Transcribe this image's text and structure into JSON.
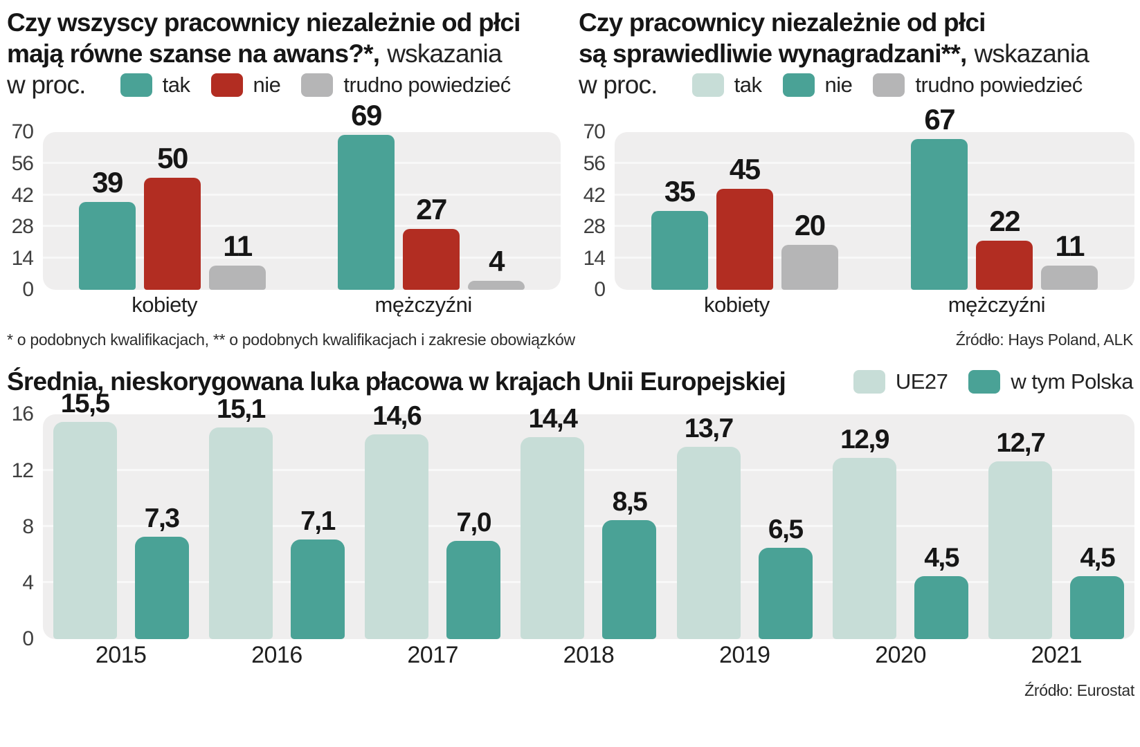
{
  "colors": {
    "teal": "#4aa296",
    "light_teal": "#c7ddd7",
    "red": "#b22d22",
    "gray": "#b5b5b6",
    "plot_bg": "#efeeee",
    "grid": "#f8f8f8"
  },
  "footnotes": {
    "qualifications": "* o podobnych kwalifikacjach, ** o podobnych kwalifikacjach i zakresie obowiązków"
  },
  "sources": {
    "top": "Źródło: Hays Poland, ALK",
    "bottom": "Źródło: Eurostat"
  },
  "chart_data": [
    {
      "type": "bar",
      "title_bold_line1": "Czy wszyscy pracownicy niezależnie od płci",
      "title_bold_line2": "mają równe szanse na awans?*,",
      "title_regular_tail": "wskazania",
      "title_unit_line": "w proc.",
      "categories": [
        "kobiety",
        "mężczyźni"
      ],
      "series": [
        {
          "name": "tak",
          "color": "teal",
          "values": [
            39,
            69
          ],
          "labels": [
            "39",
            "69"
          ]
        },
        {
          "name": "nie",
          "color": "red",
          "values": [
            50,
            27
          ],
          "labels": [
            "50",
            "27"
          ]
        },
        {
          "name": "trudno powiedzieć",
          "color": "gray",
          "values": [
            11,
            4
          ],
          "labels": [
            "11",
            "4"
          ]
        }
      ],
      "legend": [
        {
          "label": "tak",
          "color": "teal"
        },
        {
          "label": "nie",
          "color": "red"
        },
        {
          "label": "trudno powiedzieć",
          "color": "gray"
        }
      ],
      "ylim": [
        0,
        70
      ],
      "yticks": [
        0,
        14,
        28,
        42,
        56,
        70
      ],
      "grid": true,
      "legend_position": "top"
    },
    {
      "type": "bar",
      "title_bold_line1": "Czy pracownicy niezależnie od płci",
      "title_bold_line2": "są sprawiedliwie wynagradzani**,",
      "title_regular_tail": "wskazania",
      "title_unit_line": "w proc.",
      "categories": [
        "kobiety",
        "mężczyźni"
      ],
      "series": [
        {
          "name": "tak",
          "color": "teal",
          "values": [
            35,
            67
          ],
          "labels": [
            "35",
            "67"
          ]
        },
        {
          "name": "nie",
          "color": "red",
          "values": [
            45,
            22
          ],
          "labels": [
            "45",
            "22"
          ]
        },
        {
          "name": "trudno powiedzieć",
          "color": "gray",
          "values": [
            20,
            11
          ],
          "labels": [
            "20",
            "11"
          ]
        }
      ],
      "legend": [
        {
          "label": "tak",
          "color": "light_teal"
        },
        {
          "label": "nie",
          "color": "teal"
        },
        {
          "label": "trudno powiedzieć",
          "color": "gray"
        }
      ],
      "ylim": [
        0,
        70
      ],
      "yticks": [
        0,
        14,
        28,
        42,
        56,
        70
      ],
      "grid": true,
      "legend_position": "top"
    },
    {
      "type": "bar",
      "title": "Średnia, nieskorygowana luka płacowa w krajach Unii Europejskiej",
      "categories": [
        "2015",
        "2016",
        "2017",
        "2018",
        "2019",
        "2020",
        "2021"
      ],
      "series": [
        {
          "name": "UE27",
          "color": "light_teal",
          "values": [
            15.5,
            15.1,
            14.6,
            14.4,
            13.7,
            12.9,
            12.7
          ],
          "labels": [
            "15,5",
            "15,1",
            "14,6",
            "14,4",
            "13,7",
            "12,9",
            "12,7"
          ]
        },
        {
          "name": "w tym Polska",
          "color": "teal",
          "values": [
            7.3,
            7.1,
            7.0,
            8.5,
            6.5,
            4.5,
            4.5
          ],
          "labels": [
            "7,3",
            "7,1",
            "7,0",
            "8,5",
            "6,5",
            "4,5",
            "4,5"
          ]
        }
      ],
      "legend": [
        {
          "label": "UE27",
          "color": "light_teal"
        },
        {
          "label": "w tym Polska",
          "color": "teal"
        }
      ],
      "ylim": [
        0,
        16
      ],
      "yticks": [
        0,
        4,
        8,
        12,
        16
      ],
      "grid": true,
      "legend_position": "right-of-title"
    }
  ]
}
